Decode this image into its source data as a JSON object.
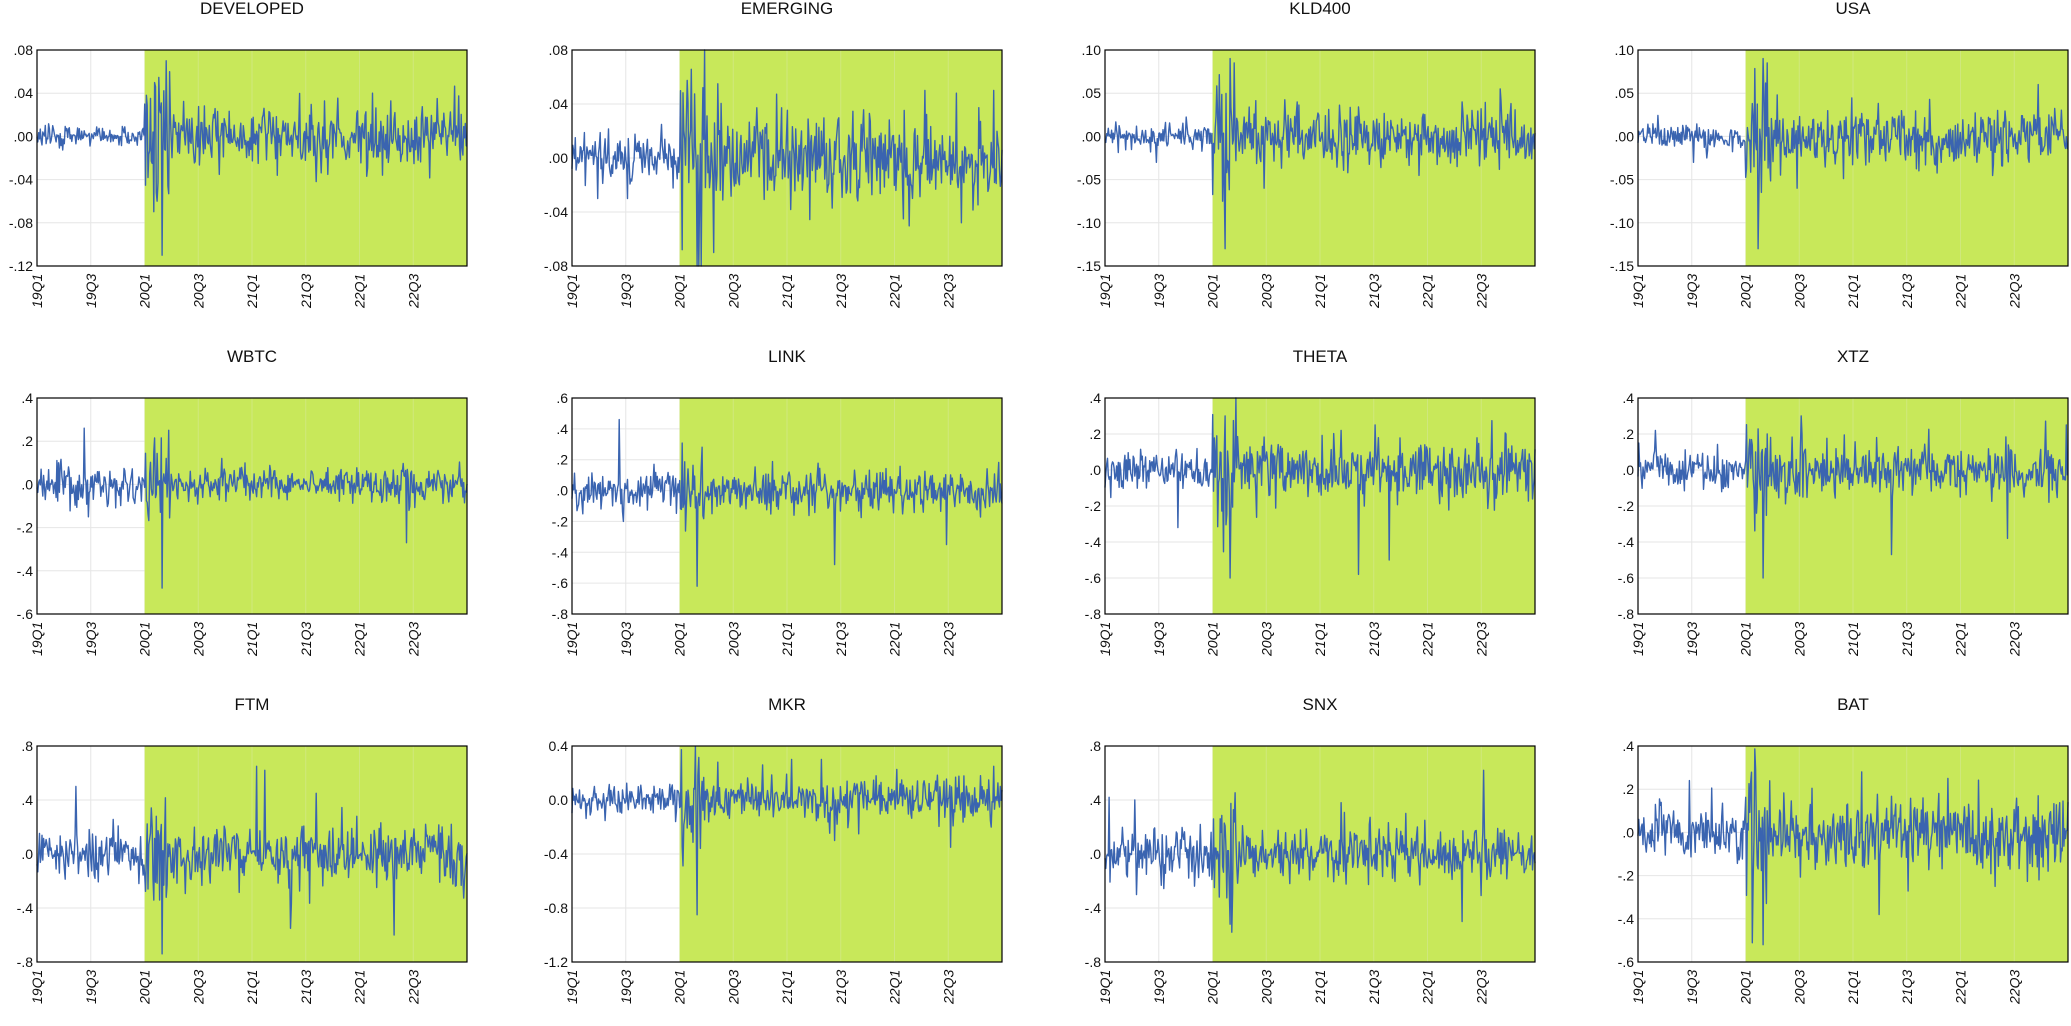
{
  "layout": {
    "cols": 4,
    "rows": 3
  },
  "colors": {
    "shade": "#c8e85a",
    "series": "#3a64b0",
    "grid": "#e6e6e6",
    "axis": "#000000"
  },
  "chart_data": [
    {
      "type": "line",
      "title": "DEVELOPED",
      "x_ticks": [
        "19Q1",
        "19Q3",
        "20Q1",
        "20Q3",
        "21Q1",
        "21Q3",
        "22Q1",
        "22Q3"
      ],
      "x_range": [
        "2019-01-01",
        "2022-12-31"
      ],
      "shaded_from": "2020-01-01",
      "ylim": [
        -0.12,
        0.08
      ],
      "y_ticks": [
        0.08,
        0.04,
        0.0,
        -0.04,
        -0.08,
        -0.12
      ],
      "y_tick_labels": [
        ".08",
        ".04",
        ".00",
        "-.04",
        "-.08",
        "-.12"
      ],
      "series": [
        {
          "pre_scale": 0.004,
          "post_scale": 0.012,
          "shocks": [
            [
              0.29,
              -0.11
            ],
            [
              0.3,
              0.07
            ],
            [
              0.28,
              -0.06
            ],
            [
              0.78,
              0.04
            ],
            [
              0.93,
              0.035
            ]
          ]
        }
      ]
    },
    {
      "type": "line",
      "title": "EMERGING",
      "x_ticks": [
        "19Q1",
        "19Q3",
        "20Q1",
        "20Q3",
        "21Q1",
        "21Q3",
        "22Q1",
        "22Q3"
      ],
      "x_range": [
        "2019-01-01",
        "2022-12-31"
      ],
      "shaded_from": "2020-01-01",
      "ylim": [
        -0.08,
        0.08
      ],
      "y_ticks": [
        0.08,
        0.04,
        0.0,
        -0.04,
        -0.08
      ],
      "y_tick_labels": [
        ".08",
        ".04",
        ".00",
        "-.04",
        "-.08"
      ],
      "series": [
        {
          "pre_scale": 0.008,
          "post_scale": 0.014,
          "shocks": [
            [
              0.06,
              -0.03
            ],
            [
              0.13,
              -0.03
            ],
            [
              0.33,
              -0.07
            ],
            [
              0.34,
              0.055
            ],
            [
              0.77,
              -0.045
            ],
            [
              0.82,
              0.05
            ],
            [
              0.98,
              0.05
            ]
          ]
        }
      ]
    },
    {
      "type": "line",
      "title": "KLD400",
      "x_ticks": [
        "19Q1",
        "19Q3",
        "20Q1",
        "20Q3",
        "21Q1",
        "21Q3",
        "22Q1",
        "22Q3"
      ],
      "x_range": [
        "2019-01-01",
        "2022-12-31"
      ],
      "shaded_from": "2020-01-01",
      "ylim": [
        -0.15,
        0.1
      ],
      "y_ticks": [
        0.1,
        0.05,
        0.0,
        -0.05,
        -0.1,
        -0.15
      ],
      "y_tick_labels": [
        ".10",
        ".05",
        ".00",
        "-.05",
        "-.10",
        "-.15"
      ],
      "series": [
        {
          "pre_scale": 0.006,
          "post_scale": 0.014,
          "shocks": [
            [
              0.12,
              -0.03
            ],
            [
              0.28,
              -0.13
            ],
            [
              0.29,
              0.09
            ],
            [
              0.3,
              0.085
            ],
            [
              0.37,
              -0.06
            ],
            [
              0.92,
              0.055
            ]
          ]
        }
      ]
    },
    {
      "type": "line",
      "title": "USA",
      "x_ticks": [
        "19Q1",
        "19Q3",
        "20Q1",
        "20Q3",
        "21Q1",
        "21Q3",
        "22Q1",
        "22Q3"
      ],
      "x_range": [
        "2019-01-01",
        "2022-12-31"
      ],
      "shaded_from": "2020-01-01",
      "ylim": [
        -0.15,
        0.1
      ],
      "y_ticks": [
        0.1,
        0.05,
        0.0,
        -0.05,
        -0.1,
        -0.15
      ],
      "y_tick_labels": [
        ".10",
        ".05",
        ".00",
        "-.05",
        "-.10",
        "-.15"
      ],
      "series": [
        {
          "pre_scale": 0.006,
          "post_scale": 0.014,
          "shocks": [
            [
              0.13,
              -0.03
            ],
            [
              0.28,
              -0.13
            ],
            [
              0.29,
              0.09
            ],
            [
              0.3,
              0.085
            ],
            [
              0.37,
              -0.06
            ],
            [
              0.93,
              0.06
            ]
          ]
        }
      ]
    },
    {
      "type": "line",
      "title": "WBTC",
      "x_ticks": [
        "19Q1",
        "19Q3",
        "20Q1",
        "20Q3",
        "21Q1",
        "21Q3",
        "22Q1",
        "22Q3"
      ],
      "x_range": [
        "2019-01-01",
        "2022-12-31"
      ],
      "shaded_from": "2020-01-01",
      "ylim": [
        -0.6,
        0.4
      ],
      "y_ticks": [
        0.4,
        0.2,
        0.0,
        -0.2,
        -0.4,
        -0.6
      ],
      "y_tick_labels": [
        ".4",
        ".2",
        ".0",
        "-.2",
        "-.4",
        "-.6"
      ],
      "series": [
        {
          "pre_scale": 0.04,
          "post_scale": 0.035,
          "shocks": [
            [
              0.11,
              0.26
            ],
            [
              0.12,
              -0.15
            ],
            [
              0.05,
              0.1
            ],
            [
              0.29,
              -0.48
            ],
            [
              0.3,
              0.12
            ],
            [
              0.86,
              -0.27
            ],
            [
              0.43,
              0.12
            ]
          ]
        }
      ]
    },
    {
      "type": "line",
      "title": "LINK",
      "x_ticks": [
        "19Q1",
        "19Q3",
        "20Q1",
        "20Q3",
        "21Q1",
        "21Q3",
        "22Q1",
        "22Q3"
      ],
      "x_range": [
        "2019-01-01",
        "2022-12-31"
      ],
      "shaded_from": "2020-01-01",
      "ylim": [
        -0.8,
        0.6
      ],
      "y_ticks": [
        0.6,
        0.4,
        0.2,
        0.0,
        -0.2,
        -0.4,
        -0.6,
        -0.8
      ],
      "y_tick_labels": [
        ".6",
        ".4",
        ".2",
        ".0",
        "-.2",
        "-.4",
        "-.6",
        "-.8"
      ],
      "series": [
        {
          "pre_scale": 0.05,
          "post_scale": 0.06,
          "shocks": [
            [
              0.11,
              0.46
            ],
            [
              0.12,
              -0.2
            ],
            [
              0.19,
              0.17
            ],
            [
              0.29,
              -0.62
            ],
            [
              0.3,
              0.15
            ],
            [
              0.61,
              -0.48
            ],
            [
              0.87,
              -0.35
            ]
          ]
        }
      ]
    },
    {
      "type": "line",
      "title": "THETA",
      "x_ticks": [
        "19Q1",
        "19Q3",
        "20Q1",
        "20Q3",
        "21Q1",
        "21Q3",
        "22Q1",
        "22Q3"
      ],
      "x_range": [
        "2019-01-01",
        "2022-12-31"
      ],
      "shaded_from": "2020-01-01",
      "ylim": [
        -0.8,
        0.4
      ],
      "y_ticks": [
        0.4,
        0.2,
        0.0,
        -0.2,
        -0.4,
        -0.6,
        -0.8
      ],
      "y_tick_labels": [
        ".4",
        ".2",
        ".0",
        "-.2",
        "-.4",
        "-.6",
        "-.8"
      ],
      "series": [
        {
          "pre_scale": 0.05,
          "post_scale": 0.07,
          "shocks": [
            [
              0.17,
              -0.32
            ],
            [
              0.28,
              0.3
            ],
            [
              0.29,
              -0.6
            ],
            [
              0.59,
              -0.58
            ],
            [
              0.66,
              -0.5
            ],
            [
              0.55,
              0.22
            ]
          ]
        }
      ]
    },
    {
      "type": "line",
      "title": "XTZ",
      "x_ticks": [
        "19Q1",
        "19Q3",
        "20Q1",
        "20Q3",
        "21Q1",
        "21Q3",
        "22Q1",
        "22Q3"
      ],
      "x_range": [
        "2019-01-01",
        "2022-12-31"
      ],
      "shaded_from": "2020-01-01",
      "ylim": [
        -0.8,
        0.4
      ],
      "y_ticks": [
        0.4,
        0.2,
        0.0,
        -0.2,
        -0.4,
        -0.6,
        -0.8
      ],
      "y_tick_labels": [
        ".4",
        ".2",
        ".0",
        "-.2",
        "-.4",
        "-.6",
        "-.8"
      ],
      "series": [
        {
          "pre_scale": 0.05,
          "post_scale": 0.06,
          "shocks": [
            [
              0.04,
              0.22
            ],
            [
              0.29,
              -0.6
            ],
            [
              0.3,
              0.2
            ],
            [
              0.38,
              0.3
            ],
            [
              0.59,
              -0.47
            ],
            [
              0.86,
              -0.38
            ]
          ]
        }
      ]
    },
    {
      "type": "line",
      "title": "FTM",
      "x_ticks": [
        "19Q1",
        "19Q3",
        "20Q1",
        "20Q3",
        "21Q1",
        "21Q3",
        "22Q1",
        "22Q3"
      ],
      "x_range": [
        "2019-01-01",
        "2022-12-31"
      ],
      "shaded_from": "2020-01-01",
      "ylim": [
        -0.8,
        0.8
      ],
      "y_ticks": [
        0.8,
        0.4,
        0.0,
        -0.4,
        -0.8
      ],
      "y_tick_labels": [
        ".8",
        ".4",
        ".0",
        "-.4",
        "-.8"
      ],
      "series": [
        {
          "pre_scale": 0.07,
          "post_scale": 0.09,
          "shocks": [
            [
              0.09,
              0.5
            ],
            [
              0.29,
              -0.74
            ],
            [
              0.51,
              0.65
            ],
            [
              0.53,
              0.62
            ],
            [
              0.59,
              -0.55
            ],
            [
              0.83,
              -0.6
            ],
            [
              0.65,
              0.45
            ]
          ]
        }
      ]
    },
    {
      "type": "line",
      "title": "MKR",
      "x_ticks": [
        "19Q1",
        "19Q3",
        "20Q1",
        "20Q3",
        "21Q1",
        "21Q3",
        "22Q1",
        "22Q3"
      ],
      "x_range": [
        "2019-01-01",
        "2022-12-31"
      ],
      "shaded_from": "2020-01-01",
      "ylim": [
        -1.2,
        0.4
      ],
      "y_ticks": [
        0.4,
        0.0,
        -0.4,
        -0.8,
        -1.2
      ],
      "y_tick_labels": [
        "0.4",
        "0.0",
        "-0.4",
        "-0.8",
        "-1.2"
      ],
      "series": [
        {
          "pre_scale": 0.05,
          "post_scale": 0.07,
          "shocks": [
            [
              0.29,
              -0.85
            ],
            [
              0.34,
              0.28
            ],
            [
              0.51,
              0.3
            ],
            [
              0.58,
              0.3
            ],
            [
              0.61,
              -0.3
            ],
            [
              0.88,
              -0.35
            ],
            [
              0.98,
              0.25
            ]
          ]
        }
      ]
    },
    {
      "type": "line",
      "title": "SNX",
      "x_ticks": [
        "19Q1",
        "19Q3",
        "20Q1",
        "20Q3",
        "21Q1",
        "21Q3",
        "22Q1",
        "22Q3"
      ],
      "x_range": [
        "2019-01-01",
        "2022-12-31"
      ],
      "shaded_from": "2020-01-01",
      "ylim": [
        -0.8,
        0.8
      ],
      "y_ticks": [
        0.8,
        0.4,
        0.0,
        -0.4,
        -0.8
      ],
      "y_tick_labels": [
        ".8",
        ".4",
        ".0",
        "-.4",
        "-.8"
      ],
      "series": [
        {
          "pre_scale": 0.08,
          "post_scale": 0.08,
          "shocks": [
            [
              0.01,
              0.42
            ],
            [
              0.07,
              0.4
            ],
            [
              0.29,
              -0.52
            ],
            [
              0.55,
              0.38
            ],
            [
              0.83,
              -0.5
            ],
            [
              0.88,
              0.62
            ],
            [
              0.7,
              0.3
            ]
          ]
        }
      ]
    },
    {
      "type": "line",
      "title": "BAT",
      "x_ticks": [
        "19Q1",
        "19Q3",
        "20Q1",
        "20Q3",
        "21Q1",
        "21Q3",
        "22Q1",
        "22Q3"
      ],
      "x_range": [
        "2019-01-01",
        "2022-12-31"
      ],
      "shaded_from": "2020-01-01",
      "ylim": [
        -0.6,
        0.4
      ],
      "y_ticks": [
        0.4,
        0.2,
        0.0,
        -0.2,
        -0.4,
        -0.6
      ],
      "y_tick_labels": [
        ".4",
        ".2",
        ".0",
        "-.2",
        "-.4",
        "-.6"
      ],
      "series": [
        {
          "pre_scale": 0.05,
          "post_scale": 0.07,
          "shocks": [
            [
              0.12,
              0.24
            ],
            [
              0.29,
              -0.52
            ],
            [
              0.3,
              0.1
            ],
            [
              0.52,
              0.28
            ],
            [
              0.56,
              -0.38
            ],
            [
              0.72,
              0.25
            ],
            [
              0.83,
              -0.25
            ]
          ]
        }
      ]
    }
  ]
}
